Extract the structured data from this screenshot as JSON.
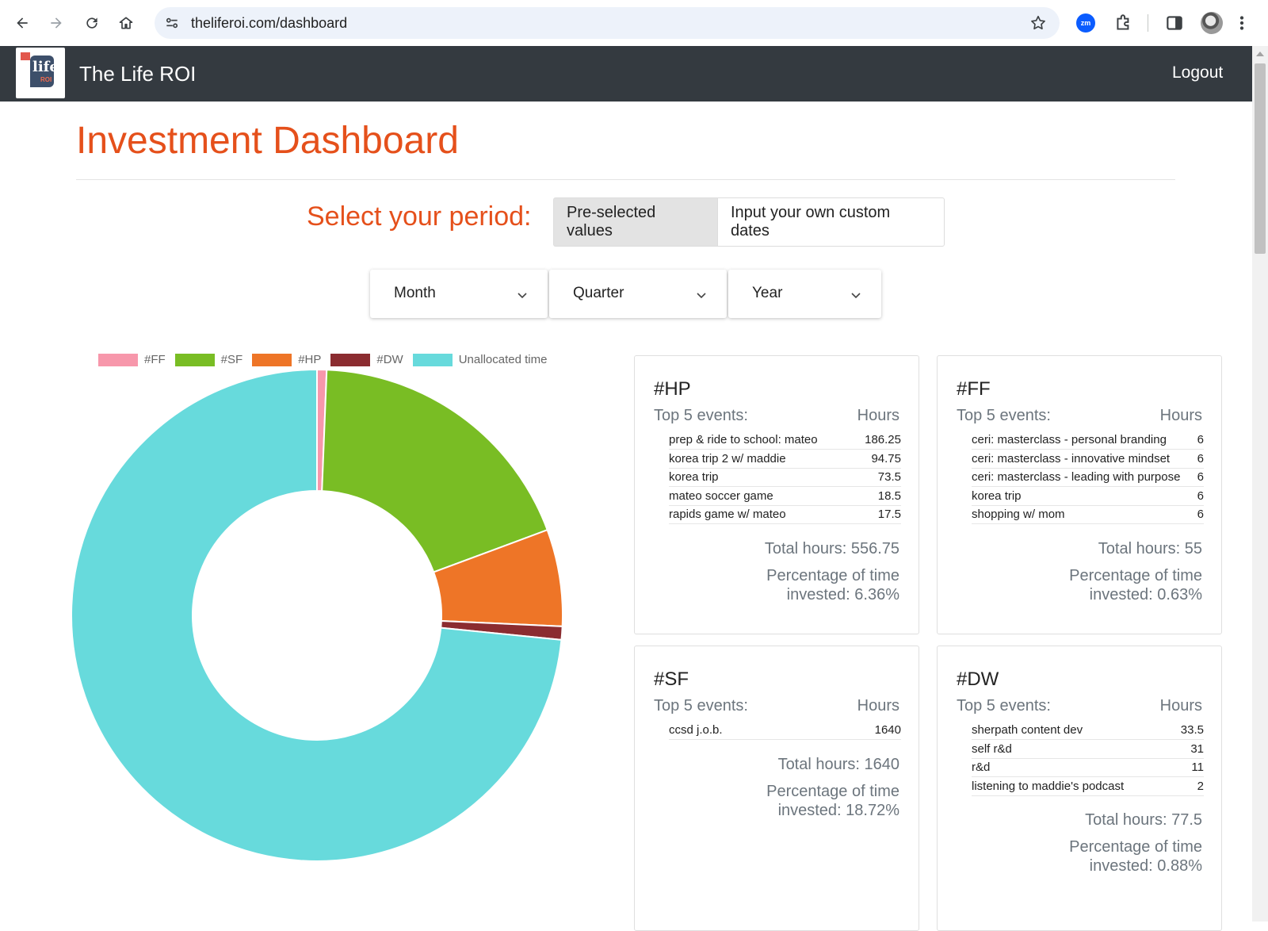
{
  "browser": {
    "url": "theliferoi.com/dashboard",
    "extension_badge": "zm"
  },
  "app": {
    "title": "The Life ROI",
    "logo_text": "life",
    "logo_subtext": "ROI",
    "logout_label": "Logout"
  },
  "page": {
    "title": "Investment Dashboard",
    "period_label": "Select your period:",
    "tabs": [
      "Pre-selected values",
      "Input your own custom dates"
    ],
    "dropdowns": [
      "Month",
      "Quarter",
      "Year"
    ]
  },
  "chart_data": {
    "type": "pie",
    "variant": "donut",
    "legend_placement": "top",
    "categories": [
      "#FF",
      "#SF",
      "#HP",
      "#DW",
      "Unallocated time"
    ],
    "values": [
      0.63,
      18.72,
      6.36,
      0.88,
      73.41
    ],
    "colors": [
      "#f797ab",
      "#79bd24",
      "#ee7527",
      "#8b2c30",
      "#67dadc"
    ]
  },
  "cards": [
    {
      "tag": "#HP",
      "top5_label": "Top 5 events:",
      "hours_label": "Hours",
      "events": [
        {
          "name": "prep & ride to school: mateo",
          "hours": "186.25"
        },
        {
          "name": "korea trip 2 w/ maddie",
          "hours": "94.75"
        },
        {
          "name": "korea trip",
          "hours": "73.5"
        },
        {
          "name": "mateo soccer game",
          "hours": "18.5"
        },
        {
          "name": "rapids game w/ mateo",
          "hours": "17.5"
        }
      ],
      "total": "Total hours: 556.75",
      "pct_line1": "Percentage of time",
      "pct_line2": "invested: 6.36%"
    },
    {
      "tag": "#FF",
      "top5_label": "Top 5 events:",
      "hours_label": "Hours",
      "events": [
        {
          "name": "ceri: masterclass - personal branding",
          "hours": "6"
        },
        {
          "name": "ceri: masterclass - innovative mindset",
          "hours": "6"
        },
        {
          "name": "ceri: masterclass - leading with purpose",
          "hours": "6"
        },
        {
          "name": "korea trip",
          "hours": "6"
        },
        {
          "name": "shopping w/ mom",
          "hours": "6"
        }
      ],
      "total": "Total hours: 55",
      "pct_line1": "Percentage of time",
      "pct_line2": "invested: 0.63%"
    },
    {
      "tag": "#SF",
      "top5_label": "Top 5 events:",
      "hours_label": "Hours",
      "events": [
        {
          "name": "ccsd j.o.b.",
          "hours": "1640"
        }
      ],
      "total": "Total hours: 1640",
      "pct_line1": "Percentage of time",
      "pct_line2": "invested: 18.72%"
    },
    {
      "tag": "#DW",
      "top5_label": "Top 5 events:",
      "hours_label": "Hours",
      "events": [
        {
          "name": "sherpath content dev",
          "hours": "33.5"
        },
        {
          "name": "self r&d",
          "hours": "31"
        },
        {
          "name": "r&d",
          "hours": "11"
        },
        {
          "name": "listening to maddie's podcast",
          "hours": "2"
        }
      ],
      "total": "Total hours: 77.5",
      "pct_line1": "Percentage of time",
      "pct_line2": "invested: 0.88%"
    }
  ]
}
